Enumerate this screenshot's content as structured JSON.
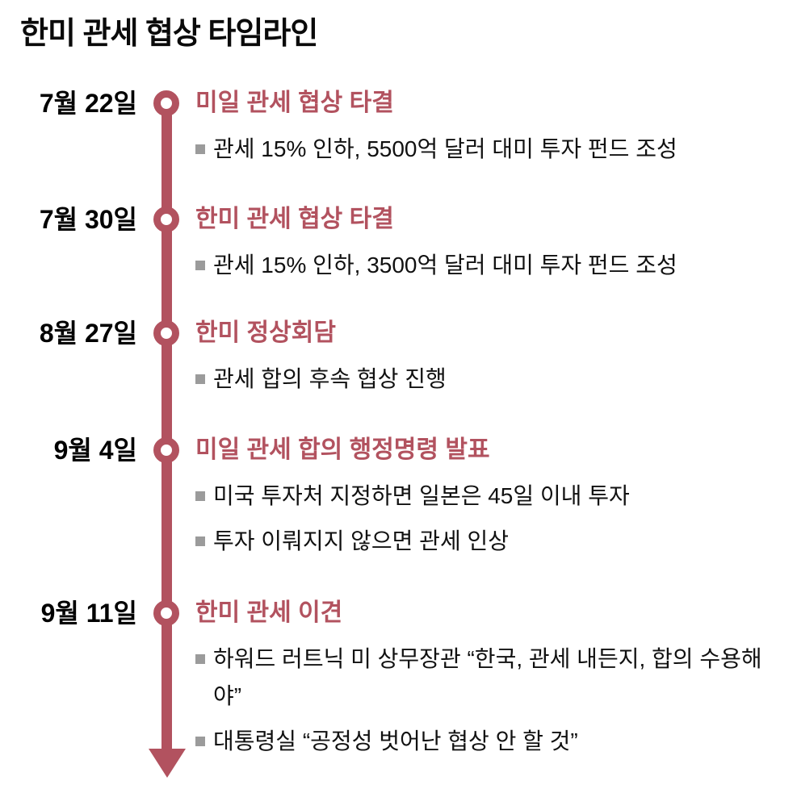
{
  "title": "한미 관세 협상 타임라인",
  "colors": {
    "accent": "#b2525f",
    "bullet_marker": "#9b9b9b",
    "body_text": "#111111",
    "title_text": "#0a0a0a",
    "background": "#ffffff"
  },
  "icons": {
    "node": "timeline-node-ring",
    "arrow": "arrow-down-triangle",
    "bullet": "gray-square"
  },
  "events": [
    {
      "date": "7월 22일",
      "title": "미일 관세 협상 타결",
      "bullets": [
        "관세 15% 인하, 5500억 달러 대미 투자 펀드 조성"
      ]
    },
    {
      "date": "7월 30일",
      "title": "한미 관세 협상 타결",
      "bullets": [
        "관세 15% 인하, 3500억 달러 대미 투자 펀드 조성"
      ]
    },
    {
      "date": "8월 27일",
      "title": "한미 정상회담",
      "bullets": [
        "관세 합의 후속 협상 진행"
      ]
    },
    {
      "date": "9월 4일",
      "title": "미일 관세 합의 행정명령 발표",
      "bullets": [
        "미국 투자처 지정하면 일본은 45일 이내 투자",
        "투자 이뤄지지 않으면 관세 인상"
      ]
    },
    {
      "date": "9월 11일",
      "title": "한미 관세 이견",
      "bullets": [
        "하워드 러트닉 미 상무장관 “한국, 관세 내든지, 합의 수용해야”",
        "대통령실 “공정성 벗어난 협상 안 할 것”"
      ]
    }
  ]
}
